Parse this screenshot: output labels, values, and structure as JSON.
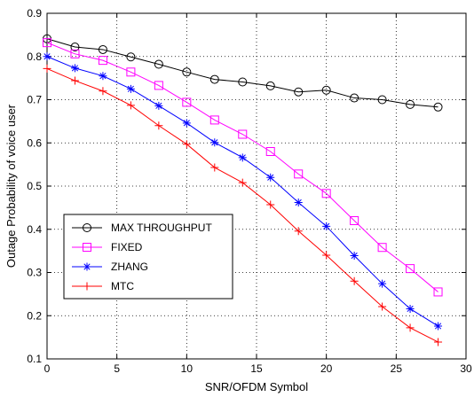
{
  "chart_data": {
    "type": "line",
    "title": "",
    "xlabel": "SNR/OFDM Symbol",
    "ylabel": "Outage Probability of voice user",
    "xlim": [
      0,
      30
    ],
    "ylim": [
      0.1,
      0.9
    ],
    "xticks": [
      0,
      5,
      10,
      15,
      20,
      25,
      30
    ],
    "yticks": [
      0.1,
      0.2,
      0.3,
      0.4,
      0.5,
      0.6,
      0.7,
      0.8,
      0.9
    ],
    "xtick_labels": [
      "0",
      "5",
      "10",
      "15",
      "20",
      "25",
      "30"
    ],
    "ytick_labels": [
      "0.1",
      "0.2",
      "0.3",
      "0.4",
      "0.5",
      "0.6",
      "0.7",
      "0.8",
      "0.9"
    ],
    "grid": true,
    "legend_position": "lower-left",
    "x": [
      0,
      2,
      4,
      6,
      8,
      10,
      12,
      14,
      16,
      18,
      20,
      22,
      24,
      26,
      28
    ],
    "series": [
      {
        "name": "MAX THROUGHPUT",
        "color": "#000000",
        "marker": "circle",
        "values": [
          0.841,
          0.822,
          0.816,
          0.799,
          0.782,
          0.764,
          0.747,
          0.741,
          0.732,
          0.718,
          0.722,
          0.704,
          0.7,
          0.689,
          0.683
        ]
      },
      {
        "name": "FIXED",
        "color": "#ff00ff",
        "marker": "square",
        "values": [
          0.832,
          0.806,
          0.791,
          0.764,
          0.733,
          0.694,
          0.653,
          0.62,
          0.58,
          0.528,
          0.483,
          0.42,
          0.358,
          0.309,
          0.255
        ]
      },
      {
        "name": "ZHANG",
        "color": "#0000ff",
        "marker": "asterisk",
        "values": [
          0.8,
          0.773,
          0.755,
          0.725,
          0.686,
          0.646,
          0.601,
          0.566,
          0.52,
          0.462,
          0.407,
          0.339,
          0.274,
          0.216,
          0.176
        ]
      },
      {
        "name": "MTC",
        "color": "#ff0000",
        "marker": "plus",
        "values": [
          0.772,
          0.744,
          0.72,
          0.687,
          0.64,
          0.597,
          0.543,
          0.508,
          0.457,
          0.396,
          0.34,
          0.28,
          0.221,
          0.172,
          0.139
        ]
      }
    ]
  }
}
